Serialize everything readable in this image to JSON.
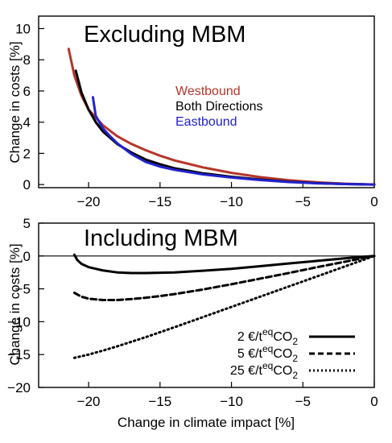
{
  "chart_data": [
    {
      "type": "line",
      "title": "Excluding MBM",
      "xlabel": "",
      "ylabel": "Change in costs [%]",
      "xlim": [
        -23.5,
        0
      ],
      "ylim": [
        -0.2,
        10.8
      ],
      "xticks": [
        -20,
        -15,
        -10,
        -5,
        0
      ],
      "yticks": [
        0,
        2,
        4,
        6,
        8,
        10
      ],
      "xtick_labels": [
        "−20",
        "−15",
        "−10",
        "−5",
        "0"
      ],
      "ytick_labels": [
        "0",
        "2",
        "4",
        "6",
        "8",
        "10"
      ],
      "legend_position": "center",
      "series": [
        {
          "name": "Westbound",
          "color": "#b5362b",
          "x": [
            -21.4,
            -21.0,
            -20.5,
            -20.0,
            -19.0,
            -18.0,
            -17.0,
            -16.0,
            -15.0,
            -14.0,
            -12.0,
            -10.0,
            -8.0,
            -6.0,
            -4.0,
            -2.0,
            0.0
          ],
          "y": [
            8.7,
            7.0,
            5.7,
            4.8,
            3.8,
            3.1,
            2.6,
            2.2,
            1.85,
            1.55,
            1.1,
            0.75,
            0.48,
            0.28,
            0.14,
            0.05,
            0.0
          ]
        },
        {
          "name": "Both Directions",
          "color": "#000000",
          "x": [
            -20.9,
            -20.5,
            -20.0,
            -19.5,
            -19.0,
            -18.0,
            -17.0,
            -16.0,
            -15.0,
            -14.0,
            -12.0,
            -10.0,
            -8.0,
            -6.0,
            -4.0,
            -2.0,
            0.0
          ],
          "y": [
            7.3,
            5.9,
            4.8,
            4.0,
            3.4,
            2.6,
            2.05,
            1.6,
            1.3,
            1.05,
            0.72,
            0.5,
            0.32,
            0.18,
            0.09,
            0.03,
            0.0
          ]
        },
        {
          "name": "Eastbound",
          "color": "#2222cc",
          "x": [
            -19.7,
            -19.6,
            -19.5,
            -19.0,
            -18.5,
            -18.0,
            -17.0,
            -16.0,
            -15.0,
            -14.0,
            -12.0,
            -10.0,
            -8.0,
            -6.0,
            -4.0,
            -2.0,
            0.0
          ],
          "y": [
            5.6,
            5.0,
            4.4,
            3.6,
            3.1,
            2.65,
            1.95,
            1.45,
            1.15,
            0.95,
            0.65,
            0.45,
            0.29,
            0.16,
            0.08,
            0.03,
            0.0
          ]
        }
      ]
    },
    {
      "type": "line",
      "title": "Including MBM",
      "xlabel": "Change in climate impact [%]",
      "ylabel": "Change in costs [%]",
      "xlim": [
        -23.5,
        0
      ],
      "ylim": [
        -20,
        5
      ],
      "xticks": [
        -20,
        -15,
        -10,
        -5,
        0
      ],
      "yticks": [
        5,
        0,
        -5,
        -10,
        -15,
        -20
      ],
      "xtick_labels": [
        "−20",
        "−15",
        "−10",
        "−5",
        "0"
      ],
      "ytick_labels": [
        "5",
        "0",
        "−5",
        "−10",
        "−15",
        "−20"
      ],
      "legend_position": "bottom-right",
      "series": [
        {
          "name": "2 €/t",
          "name_sup": "eq",
          "name_tail": "CO",
          "name_sub": "2",
          "style": "solid",
          "color": "#000000",
          "x": [
            -21.0,
            -20.8,
            -20.5,
            -20.0,
            -19.0,
            -18.0,
            -17.0,
            -16.0,
            -15.0,
            -14.0,
            -12.0,
            -10.0,
            -8.0,
            -6.0,
            -4.0,
            -2.0,
            0.0
          ],
          "y": [
            0.2,
            -0.6,
            -1.2,
            -1.7,
            -2.2,
            -2.5,
            -2.6,
            -2.6,
            -2.55,
            -2.5,
            -2.25,
            -1.95,
            -1.55,
            -1.15,
            -0.75,
            -0.35,
            0.0
          ]
        },
        {
          "name": "5 €/t",
          "name_sup": "eq",
          "name_tail": "CO",
          "name_sub": "2",
          "style": "dashed",
          "color": "#000000",
          "x": [
            -21.0,
            -20.5,
            -20.0,
            -19.0,
            -18.0,
            -17.0,
            -16.0,
            -15.0,
            -14.0,
            -12.0,
            -10.0,
            -8.0,
            -6.0,
            -4.0,
            -2.0,
            0.0
          ],
          "y": [
            -5.6,
            -6.2,
            -6.5,
            -6.7,
            -6.7,
            -6.55,
            -6.35,
            -6.1,
            -5.8,
            -5.1,
            -4.3,
            -3.45,
            -2.6,
            -1.7,
            -0.85,
            0.0
          ]
        },
        {
          "name": "25 €/t",
          "name_sup": "eq",
          "name_tail": "CO",
          "name_sub": "2",
          "style": "dotted",
          "color": "#000000",
          "x": [
            -21.0,
            -20.0,
            -19.0,
            -18.0,
            -17.0,
            -16.0,
            -15.0,
            -14.0,
            -12.0,
            -10.0,
            -8.0,
            -6.0,
            -4.0,
            -2.0,
            0.0
          ],
          "y": [
            -15.5,
            -15.0,
            -14.4,
            -13.75,
            -13.05,
            -12.35,
            -11.6,
            -10.85,
            -9.3,
            -7.75,
            -6.2,
            -4.65,
            -3.1,
            -1.55,
            0.0
          ]
        }
      ]
    }
  ]
}
